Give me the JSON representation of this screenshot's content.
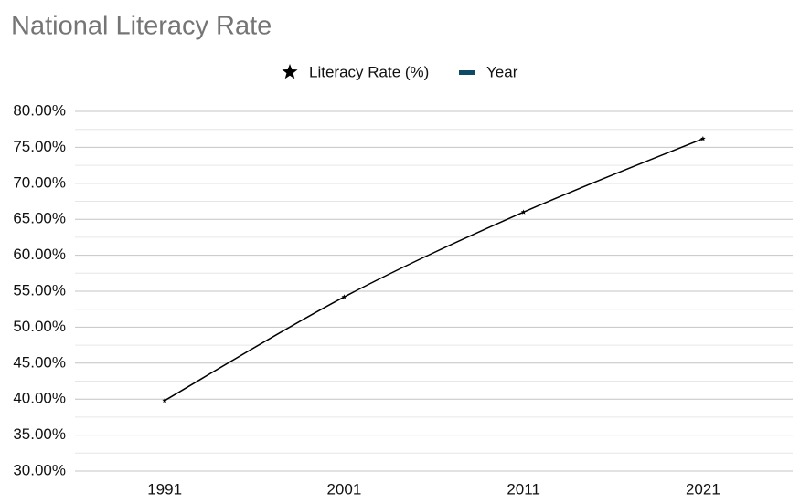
{
  "chart_data": {
    "type": "line",
    "title": "National Literacy Rate",
    "categories": [
      "1991",
      "2001",
      "2011",
      "2021"
    ],
    "series": [
      {
        "name": "Literacy Rate (%)",
        "color": "#000000",
        "marker": "star",
        "values": [
          39.8,
          54.2,
          66.0,
          76.2
        ]
      },
      {
        "name": "Year",
        "color": "#0e4a66",
        "marker": "dash",
        "values": [
          null,
          null,
          null,
          null
        ]
      }
    ],
    "ylim": [
      30,
      80
    ],
    "yticks": [
      {
        "value": 30,
        "label": "30.00%"
      },
      {
        "value": 35,
        "label": "35.00%"
      },
      {
        "value": 40,
        "label": "40.00%"
      },
      {
        "value": 45,
        "label": "45.00%"
      },
      {
        "value": 50,
        "label": "50.00%"
      },
      {
        "value": 55,
        "label": "55.00%"
      },
      {
        "value": 60,
        "label": "60.00%"
      },
      {
        "value": 65,
        "label": "65.00%"
      },
      {
        "value": 70,
        "label": "70.00%"
      },
      {
        "value": 75,
        "label": "75.00%"
      },
      {
        "value": 80,
        "label": "80.00%"
      }
    ],
    "minor_yticks": [
      32.5,
      37.5,
      42.5,
      47.5,
      52.5,
      57.5,
      62.5,
      67.5,
      72.5,
      77.5
    ],
    "grid": true,
    "minor_grid": true,
    "legend": "top",
    "smooth": true
  }
}
